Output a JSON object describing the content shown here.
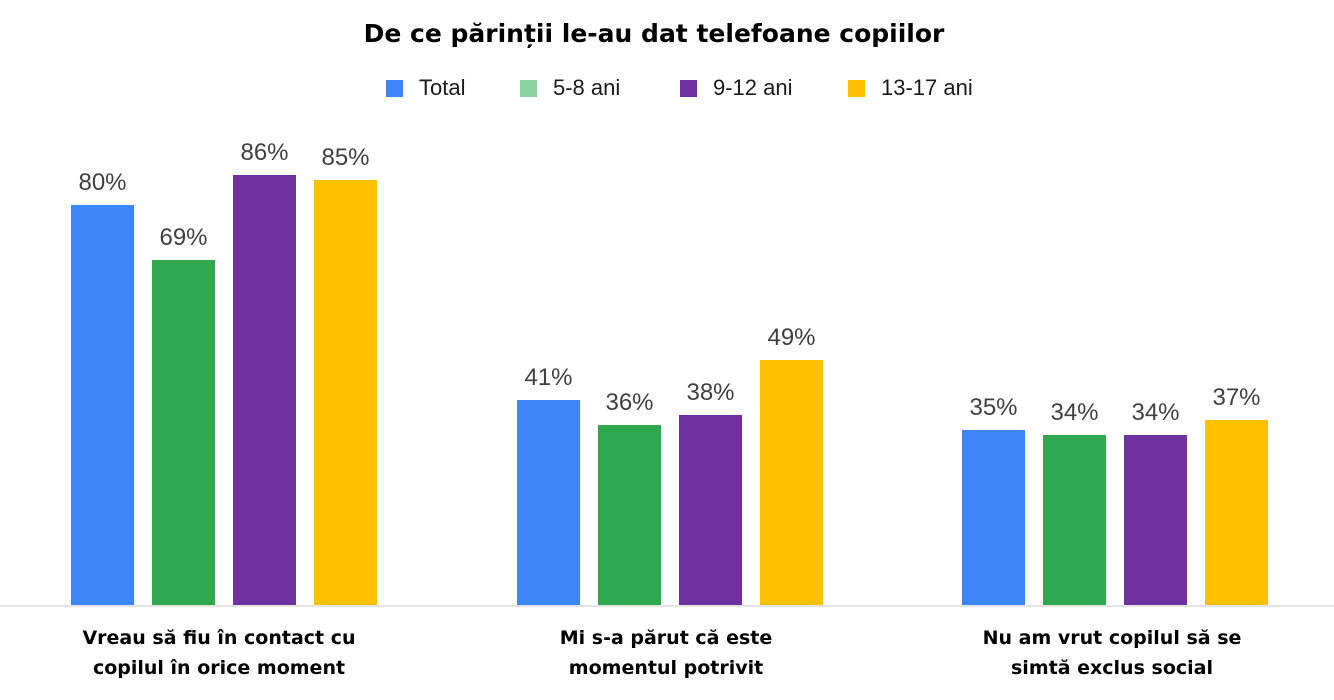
{
  "chart_data": {
    "type": "bar",
    "title": "De ce părinții le-au dat telefoane copiilor",
    "xlabel": "",
    "ylabel": "",
    "ylim": [
      0,
      100
    ],
    "grid": false,
    "legend_position": "top-center",
    "value_format": "percent",
    "categories": [
      [
        "Vreau să fiu în contact cu",
        "copilul în orice moment"
      ],
      [
        "Mi s-a părut că este",
        "momentul potrivit"
      ],
      [
        "Nu am vrut copilul să se",
        "simtă exclus social"
      ]
    ],
    "series": [
      {
        "name": "Total",
        "color": "#3d86f9",
        "values": [
          80,
          41,
          35
        ]
      },
      {
        "name": "5-8 ani",
        "color": "#30a84f",
        "legend_color": "#8bd3a2",
        "values": [
          69,
          36,
          34
        ]
      },
      {
        "name": "9-12 ani",
        "color": "#7030a0",
        "values": [
          86,
          38,
          34
        ]
      },
      {
        "name": "13-17 ani",
        "color": "#ffc000",
        "values": [
          85,
          49,
          37
        ]
      }
    ]
  }
}
